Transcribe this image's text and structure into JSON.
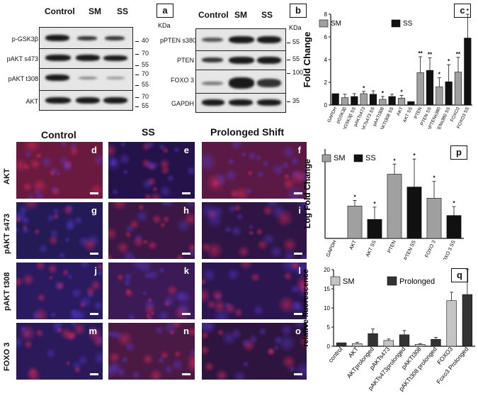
{
  "panel_a": {
    "letter": "a",
    "columns": [
      "Control",
      "SM",
      "SS"
    ],
    "kda_label": "KDa",
    "rows": [
      {
        "name": "p-GSK3β",
        "markers": [
          "40"
        ]
      },
      {
        "name": "pAKT s473",
        "markers": [
          "70",
          "55"
        ]
      },
      {
        "name": "pAKT t308",
        "markers": [
          "70",
          "55"
        ]
      },
      {
        "name": "AKT",
        "markers": [
          "70",
          "55"
        ]
      }
    ]
  },
  "panel_b": {
    "letter": "b",
    "columns": [
      "Control",
      "SM",
      "SS"
    ],
    "kda_label": "KDa",
    "rows": [
      {
        "name": "pPTEN s380",
        "markers": [
          "55"
        ]
      },
      {
        "name": "PTEN",
        "markers": [
          "55"
        ]
      },
      {
        "name": "FOXO 3",
        "markers": [
          "100"
        ]
      },
      {
        "name": "GAPDH",
        "markers": [
          "35"
        ]
      }
    ]
  },
  "micrographs": {
    "columns": [
      "Control",
      "SS",
      "Prolonged Shift"
    ],
    "rows": [
      "AKT",
      "pAKT s473",
      "pAKT t308",
      "FOXO 3"
    ],
    "letters": [
      [
        "d",
        "e",
        "f"
      ],
      [
        "g",
        "h",
        "i"
      ],
      [
        "j",
        "k",
        "l"
      ],
      [
        "m",
        "n",
        "o"
      ]
    ]
  },
  "colors": {
    "gray_bar": "#a0a0a0",
    "black_bar": "#111111",
    "light_bar": "#c4c4c4",
    "dark_bar": "#333333"
  },
  "chart_data": [
    {
      "panel": "c",
      "type": "bar",
      "ylabel": "Fold Change",
      "xlabel": "",
      "ylim": [
        0,
        8
      ],
      "yticks": [
        "0",
        "2",
        "4",
        "6",
        "8"
      ],
      "legend": [
        "SM",
        "SS"
      ],
      "legend_position": "top",
      "categories": [
        "GAPDH",
        "pGSK3β",
        "pGSK3β SS",
        "pAKTs473",
        "pAKTs473 SS",
        "pAKTt308",
        "pAKTt308 SS",
        "AKT",
        "AKT SS",
        "PTEN",
        "PTEN SS",
        "pPTENs380",
        "pPTENs380 SS",
        "FOXO3",
        "FOXO3 SS"
      ],
      "values": [
        1.0,
        0.65,
        0.75,
        1.0,
        0.95,
        0.5,
        0.75,
        0.6,
        0.3,
        2.85,
        3.05,
        1.6,
        2.05,
        2.9,
        5.9
      ],
      "errors": [
        0,
        0.3,
        0.25,
        0.2,
        0.3,
        0.25,
        0.2,
        0.25,
        0,
        1.4,
        1.1,
        0.8,
        1.5,
        1.3,
        2.1
      ],
      "bar_colors": [
        "black",
        "gray",
        "black",
        "gray",
        "black",
        "gray",
        "black",
        "gray",
        "black",
        "gray",
        "black",
        "gray",
        "black",
        "gray",
        "black"
      ],
      "significance": [
        "",
        "",
        "",
        "*",
        "",
        "*",
        "",
        "*",
        "",
        "**",
        "**",
        "*",
        "*",
        "**",
        "*"
      ]
    },
    {
      "panel": "p",
      "type": "bar",
      "ylabel": "Log Fold Change",
      "xlabel": "",
      "ylim": [
        0,
        1.6
      ],
      "legend": [
        "SM",
        "SS"
      ],
      "legend_position": "top-left",
      "categories": [
        "GAPDH",
        "AKT",
        "AKT SS",
        "PTEN",
        "PTEN SS",
        "FOXO 3",
        "FOXO 3 SS"
      ],
      "values": [
        0,
        0.58,
        0.34,
        1.15,
        0.92,
        0.72,
        0.41
      ],
      "errors": [
        0,
        0.1,
        0.22,
        0.18,
        0.5,
        0.3,
        0.16
      ],
      "bar_colors": [
        "gray",
        "gray",
        "black",
        "gray",
        "black",
        "gray",
        "black"
      ],
      "significance": [
        "",
        "*",
        "*",
        "*",
        "*",
        "*",
        "*"
      ]
    },
    {
      "panel": "q",
      "type": "bar",
      "ylabel": "relative fluorescence",
      "xlabel": "",
      "ylim": [
        0,
        20
      ],
      "yticks": [
        "0",
        "5",
        "10",
        "15",
        "20"
      ],
      "legend": [
        "SM",
        "Prolonged"
      ],
      "legend_position": "top",
      "categories": [
        "control",
        "AKT",
        "AKTprolonged",
        "pAKTs473",
        "pAKTs473prolonged",
        "pAKTt308",
        "pAKTt308 prolonged",
        "FOXO3",
        "Foxo3 Prolonged"
      ],
      "values": [
        0.9,
        0.7,
        3.3,
        1.5,
        3.0,
        0.5,
        1.8,
        11.9,
        13.5
      ],
      "errors": [
        0,
        0.3,
        1.2,
        0.4,
        1.1,
        0.2,
        0.5,
        2.2,
        6.5
      ],
      "bar_colors": [
        "dark",
        "light",
        "dark",
        "light",
        "dark",
        "light",
        "dark",
        "light",
        "dark"
      ],
      "significance": [
        "",
        "",
        "",
        "",
        "",
        "",
        "",
        "",
        ""
      ]
    }
  ]
}
